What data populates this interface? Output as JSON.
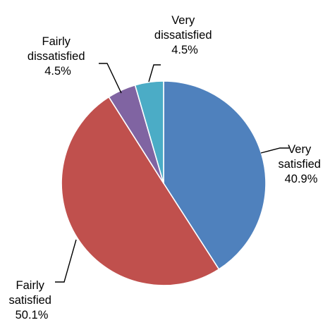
{
  "chart_data": {
    "type": "pie",
    "title": "",
    "start_angle_deg": 0,
    "direction": "clockwise",
    "legend": "none",
    "slices": [
      {
        "key": "very-satisfied",
        "label_lines": [
          "Very",
          "satisfied"
        ],
        "percent_label": "40.9%",
        "value": 40.9,
        "color": "#4F81BD"
      },
      {
        "key": "fairly-satisfied",
        "label_lines": [
          "Fairly",
          "satisfied"
        ],
        "percent_label": "50.1%",
        "value": 50.1,
        "color": "#C0504D"
      },
      {
        "key": "fairly-dissatisfied",
        "label_lines": [
          "Fairly",
          "dissatisfied"
        ],
        "percent_label": "4.5%",
        "value": 4.5,
        "color": "#8064A2"
      },
      {
        "key": "very-dissatisfied",
        "label_lines": [
          "Very",
          "dissatisfied"
        ],
        "percent_label": "4.5%",
        "value": 4.5,
        "color": "#4BACC6"
      }
    ]
  }
}
